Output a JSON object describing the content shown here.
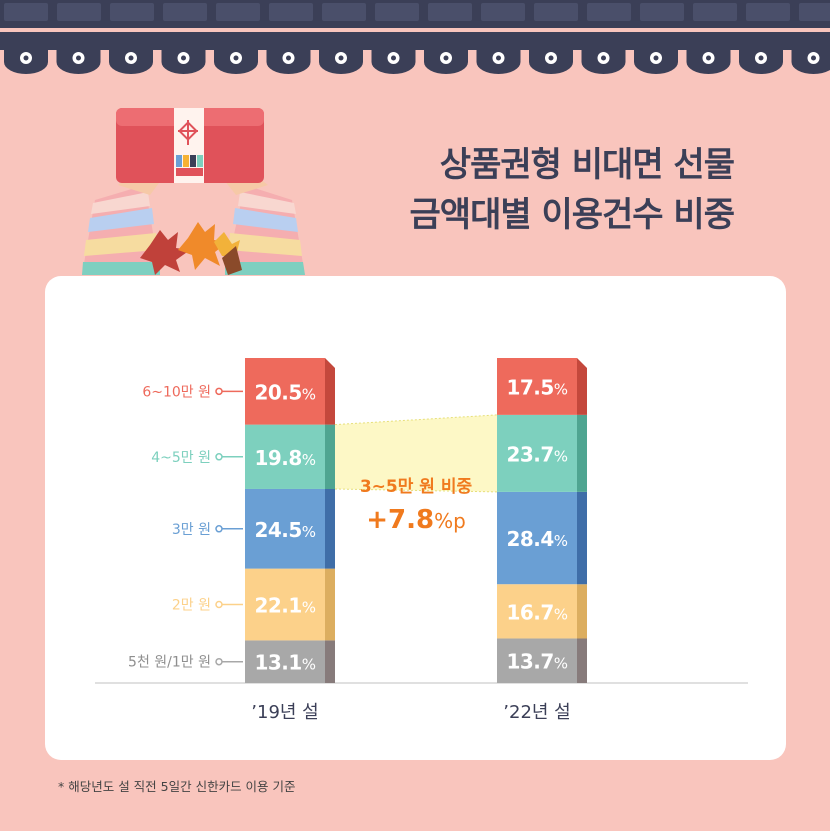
{
  "title_lines": [
    "상품권형 비대면 선물",
    "금액대별 이용건수 비중"
  ],
  "footnote": "* 해당년도 설 직전 5일간 신한카드 이용 기준",
  "annotation": {
    "line1": "3~5만 원 비중",
    "line2": "+7.8%p"
  },
  "colors": {
    "background": "#f9c5bd",
    "navy": "#3b3f57",
    "accent_orange": "#f07a1e",
    "band": "#fdf8c6"
  },
  "chart_data": {
    "type": "bar",
    "stacked": true,
    "categories": [
      "’19년 설",
      "’22년 설"
    ],
    "series": [
      {
        "name": "5천 원/1만 원",
        "values": [
          13.1,
          13.7
        ],
        "labels": [
          "13.1%",
          "13.7%"
        ],
        "color": "#a8a8a8",
        "shade": "#877b7b"
      },
      {
        "name": "2만 원",
        "values": [
          22.1,
          16.7
        ],
        "labels": [
          "22.1%",
          "16.7%"
        ],
        "color": "#fcd18a",
        "shade": "#dcae60"
      },
      {
        "name": "3만 원",
        "values": [
          24.5,
          28.4
        ],
        "labels": [
          "24.5%",
          "28.4%"
        ],
        "color": "#6a9fd4",
        "shade": "#3f6ea8"
      },
      {
        "name": "4~5만 원",
        "values": [
          19.8,
          23.7
        ],
        "labels": [
          "19.8%",
          "23.7%"
        ],
        "color": "#7dd0be",
        "shade": "#4fa591"
      },
      {
        "name": "6~10만 원",
        "values": [
          20.5,
          17.5
        ],
        "labels": [
          "20.5%",
          "17.5%"
        ],
        "color": "#ee6a5c",
        "shade": "#c4483c"
      }
    ],
    "ylim": [
      0,
      100
    ],
    "legend_placement": "left of first bar",
    "grid": false
  }
}
